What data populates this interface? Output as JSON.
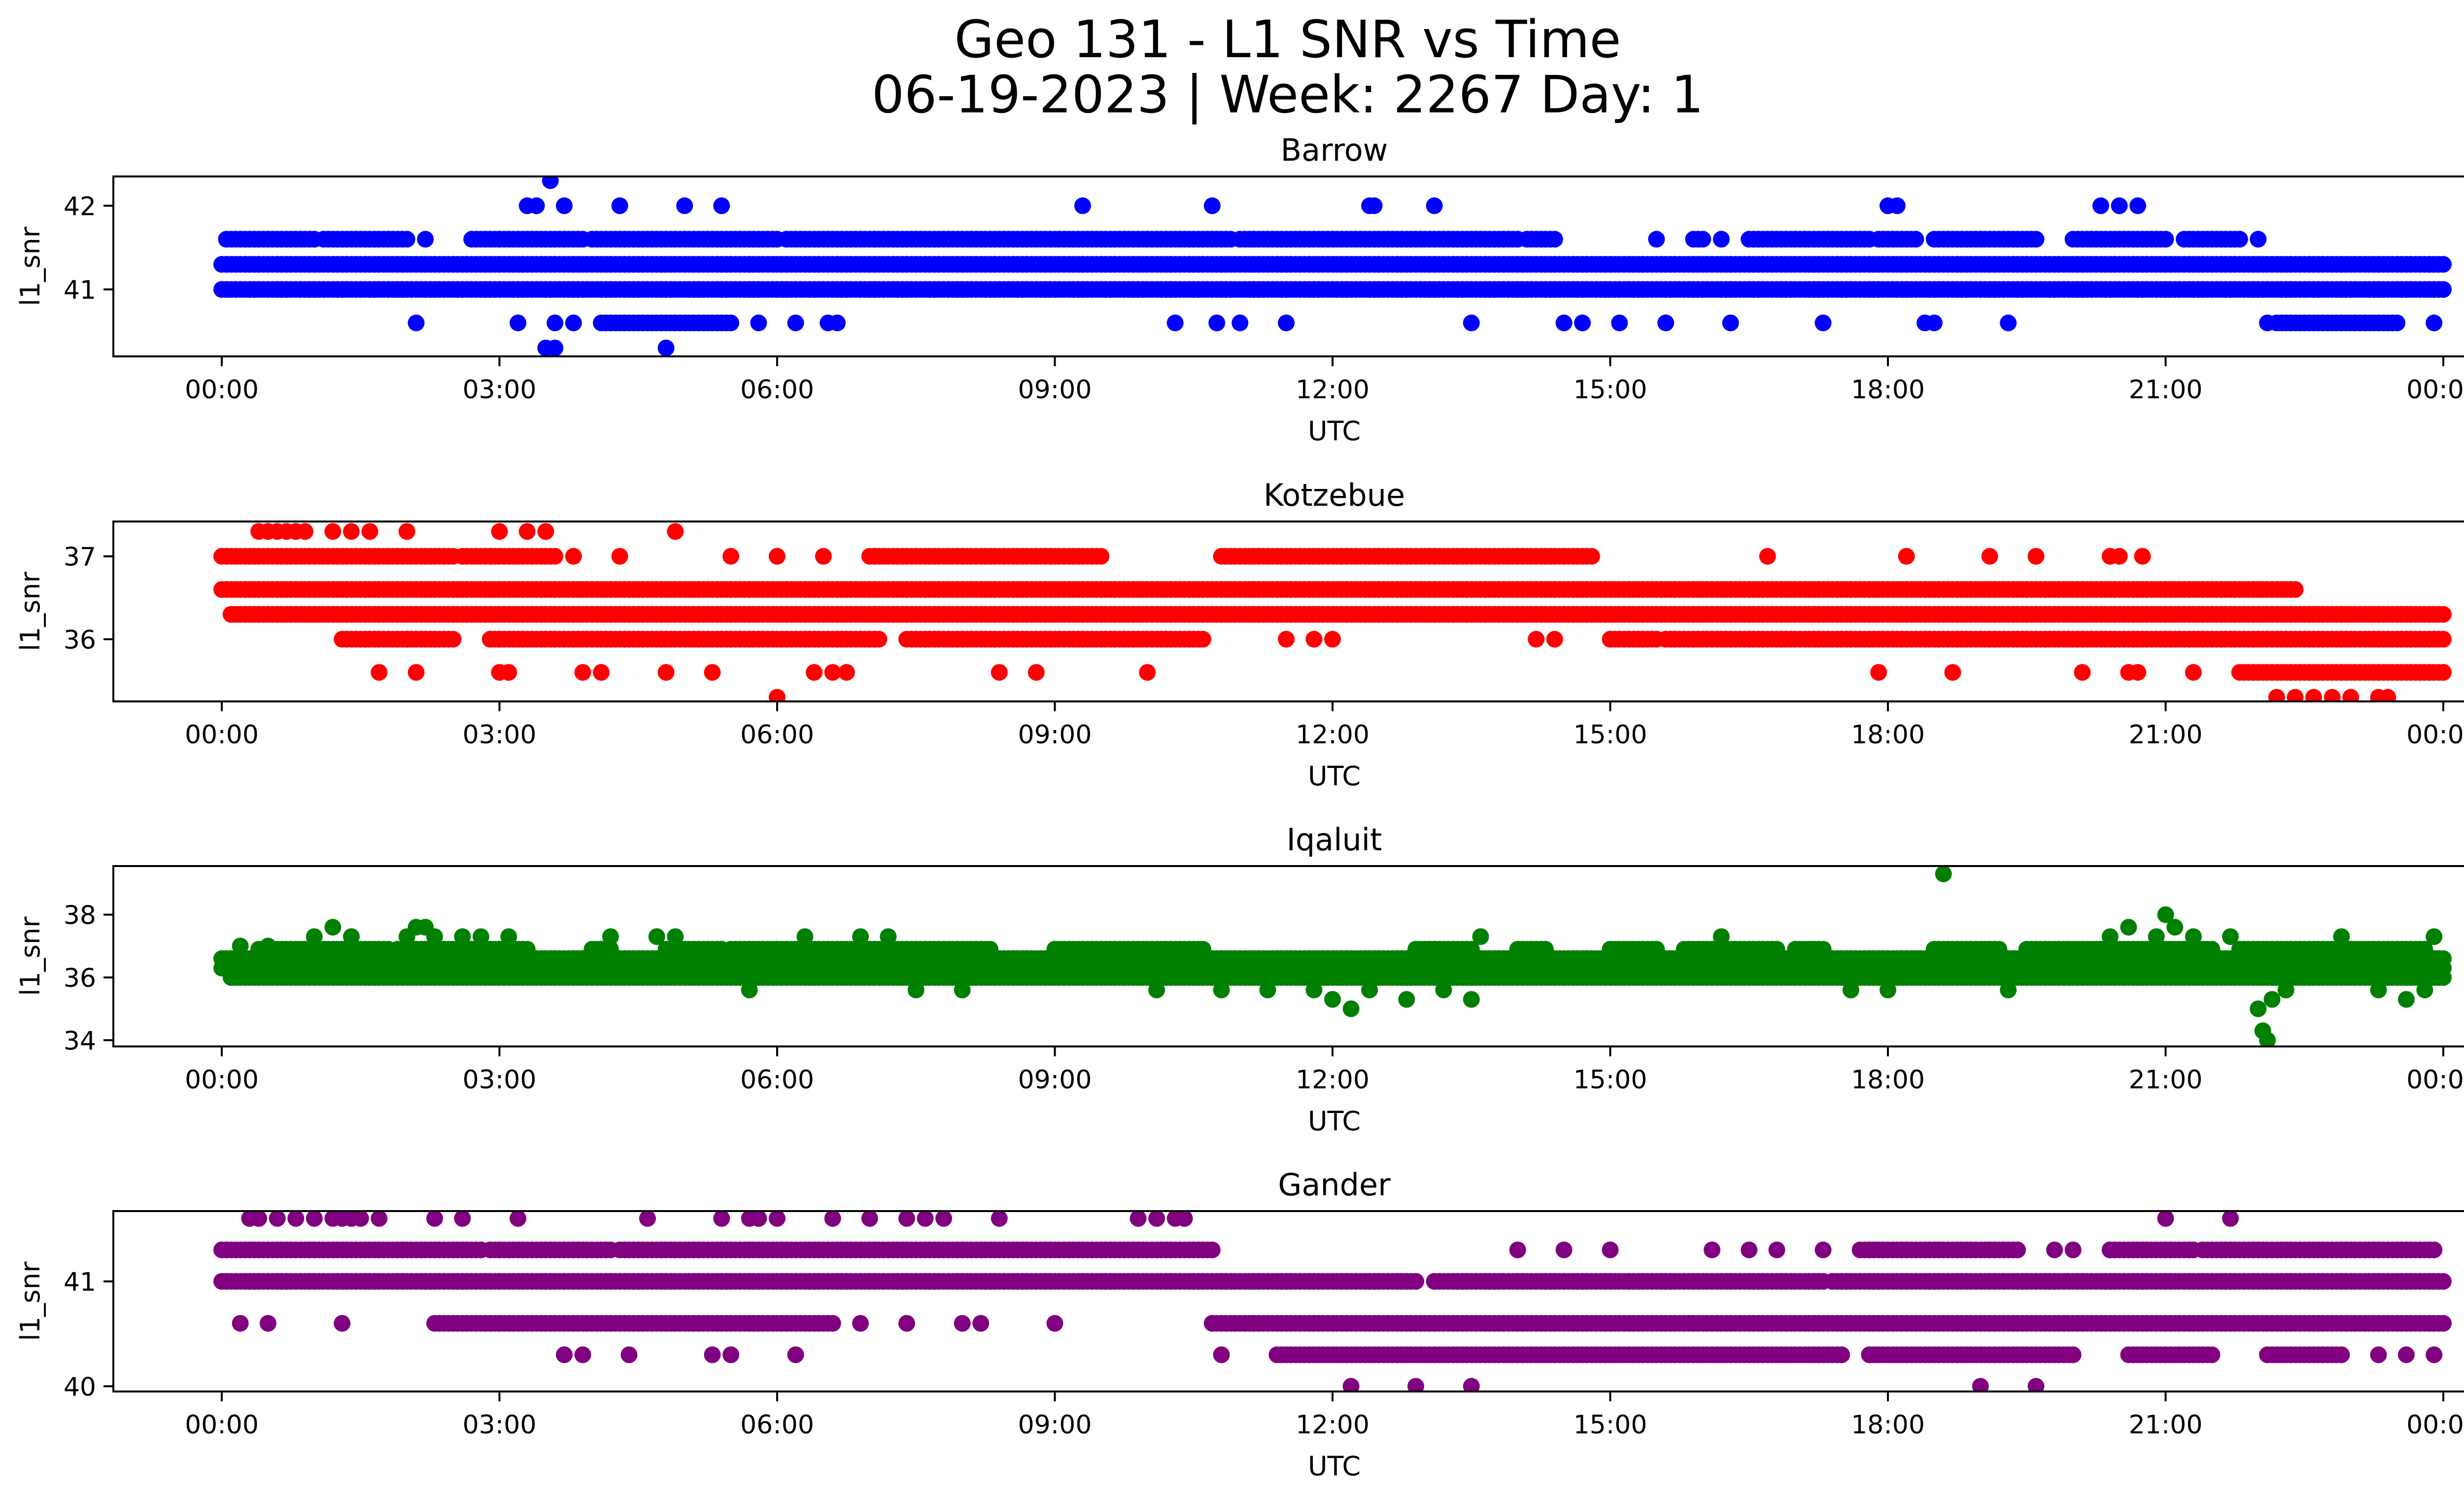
{
  "figure": {
    "title_line1": "Geo 131 - L1 SNR vs Time",
    "title_line2": "06-19-2023 | Week: 2267 Day: 1"
  },
  "chart_data": [
    {
      "type": "scatter",
      "title": "Barrow",
      "xlabel": "UTC",
      "ylabel": "l1_snr",
      "color": "#0000ff",
      "xlim": [
        "00:00",
        "24:00"
      ],
      "ylim": [
        40.2,
        42.35
      ],
      "yticks": [
        41,
        42
      ],
      "xticks": [
        "00:00",
        "03:00",
        "06:00",
        "09:00",
        "12:00",
        "15:00",
        "18:00",
        "21:00",
        "00:00"
      ],
      "grid": false,
      "bands": [
        {
          "y": 41.3,
          "ranges": [
            [
              0.0,
              24.0
            ]
          ]
        },
        {
          "y": 41.0,
          "ranges": [
            [
              0.0,
              24.0
            ]
          ]
        },
        {
          "y": 41.6,
          "ranges": [
            [
              0.05,
              1.0
            ],
            [
              1.1,
              2.0
            ],
            [
              2.7,
              3.9
            ],
            [
              4.0,
              6.0
            ],
            [
              6.1,
              10.9
            ],
            [
              11.0,
              14.0
            ],
            [
              14.1,
              14.4
            ],
            [
              15.9,
              16.0
            ],
            [
              16.5,
              17.8
            ],
            [
              17.9,
              18.3
            ],
            [
              18.5,
              19.6
            ],
            [
              20.0,
              21.0
            ],
            [
              21.2,
              21.8
            ]
          ]
        },
        {
          "y": 40.6,
          "ranges": [
            [
              4.1,
              5.5
            ],
            [
              22.2,
              23.5
            ]
          ]
        }
      ],
      "points": [
        [
          2.1,
          40.6
        ],
        [
          2.2,
          41.6
        ],
        [
          3.2,
          40.6
        ],
        [
          3.3,
          42.0
        ],
        [
          3.4,
          42.0
        ],
        [
          3.5,
          40.3
        ],
        [
          3.55,
          42.3
        ],
        [
          3.6,
          40.3
        ],
        [
          3.6,
          40.6
        ],
        [
          3.7,
          42.0
        ],
        [
          3.8,
          40.6
        ],
        [
          4.3,
          42.0
        ],
        [
          4.8,
          40.3
        ],
        [
          5.0,
          42.0
        ],
        [
          5.4,
          42.0
        ],
        [
          5.8,
          40.6
        ],
        [
          6.2,
          40.6
        ],
        [
          6.55,
          40.6
        ],
        [
          6.65,
          40.6
        ],
        [
          9.3,
          42.0
        ],
        [
          10.3,
          40.6
        ],
        [
          10.7,
          42.0
        ],
        [
          10.75,
          40.6
        ],
        [
          11.0,
          40.6
        ],
        [
          11.5,
          40.6
        ],
        [
          12.4,
          42.0
        ],
        [
          12.45,
          42.0
        ],
        [
          13.1,
          42.0
        ],
        [
          13.5,
          40.6
        ],
        [
          14.5,
          40.6
        ],
        [
          14.7,
          40.6
        ],
        [
          15.1,
          40.6
        ],
        [
          15.5,
          41.6
        ],
        [
          15.6,
          40.6
        ],
        [
          16.2,
          41.6
        ],
        [
          16.3,
          40.6
        ],
        [
          17.3,
          40.6
        ],
        [
          18.0,
          42.0
        ],
        [
          18.1,
          42.0
        ],
        [
          18.4,
          40.6
        ],
        [
          18.5,
          40.6
        ],
        [
          19.3,
          40.6
        ],
        [
          20.3,
          42.0
        ],
        [
          20.5,
          42.0
        ],
        [
          20.7,
          42.0
        ],
        [
          22.0,
          41.6
        ],
        [
          22.1,
          40.6
        ],
        [
          23.9,
          40.6
        ]
      ]
    },
    {
      "type": "scatter",
      "title": "Kotzebue",
      "xlabel": "UTC",
      "ylabel": "l1_snr",
      "color": "#ff0000",
      "xlim": [
        "00:00",
        "24:00"
      ],
      "ylim": [
        35.25,
        37.42
      ],
      "yticks": [
        36,
        37
      ],
      "xticks": [
        "00:00",
        "03:00",
        "06:00",
        "09:00",
        "12:00",
        "15:00",
        "18:00",
        "21:00",
        "00:00"
      ],
      "grid": false,
      "bands": [
        {
          "y": 36.6,
          "ranges": [
            [
              0.0,
              22.4
            ]
          ]
        },
        {
          "y": 36.3,
          "ranges": [
            [
              0.1,
              24.0
            ]
          ]
        },
        {
          "y": 37.0,
          "ranges": [
            [
              0.0,
              2.5
            ],
            [
              2.6,
              3.6
            ],
            [
              7.0,
              9.5
            ],
            [
              10.8,
              14.8
            ]
          ]
        },
        {
          "y": 36.0,
          "ranges": [
            [
              1.3,
              2.0
            ],
            [
              2.0,
              2.5
            ],
            [
              2.9,
              7.1
            ],
            [
              7.4,
              10.6
            ],
            [
              15.0,
              15.5
            ],
            [
              15.6,
              24.0
            ]
          ]
        },
        {
          "y": 35.6,
          "ranges": [
            [
              21.8,
              24.0
            ]
          ]
        }
      ],
      "points": [
        [
          0.4,
          37.3
        ],
        [
          0.5,
          37.3
        ],
        [
          0.6,
          37.3
        ],
        [
          0.7,
          37.3
        ],
        [
          0.8,
          37.3
        ],
        [
          0.9,
          37.3
        ],
        [
          1.2,
          37.3
        ],
        [
          1.4,
          37.3
        ],
        [
          1.6,
          37.3
        ],
        [
          2.0,
          37.3
        ],
        [
          3.0,
          37.3
        ],
        [
          3.3,
          37.3
        ],
        [
          3.5,
          37.3
        ],
        [
          4.9,
          37.3
        ],
        [
          1.7,
          35.6
        ],
        [
          2.1,
          35.6
        ],
        [
          3.0,
          35.6
        ],
        [
          3.1,
          35.6
        ],
        [
          3.9,
          35.6
        ],
        [
          4.1,
          35.6
        ],
        [
          4.8,
          35.6
        ],
        [
          5.3,
          35.6
        ],
        [
          6.0,
          35.3
        ],
        [
          6.4,
          35.6
        ],
        [
          6.6,
          35.6
        ],
        [
          6.75,
          35.6
        ],
        [
          8.4,
          35.6
        ],
        [
          8.8,
          35.6
        ],
        [
          10.0,
          35.6
        ],
        [
          3.8,
          37.0
        ],
        [
          4.3,
          37.0
        ],
        [
          5.5,
          37.0
        ],
        [
          6.0,
          37.0
        ],
        [
          6.5,
          37.0
        ],
        [
          11.5,
          36.0
        ],
        [
          11.8,
          36.0
        ],
        [
          12.0,
          36.0
        ],
        [
          14.2,
          36.0
        ],
        [
          14.4,
          36.0
        ],
        [
          16.7,
          37.0
        ],
        [
          18.2,
          37.0
        ],
        [
          19.1,
          37.0
        ],
        [
          19.6,
          37.0
        ],
        [
          20.4,
          37.0
        ],
        [
          20.5,
          37.0
        ],
        [
          20.75,
          37.0
        ],
        [
          17.9,
          35.6
        ],
        [
          18.7,
          35.6
        ],
        [
          20.1,
          35.6
        ],
        [
          20.6,
          35.6
        ],
        [
          20.7,
          35.6
        ],
        [
          21.3,
          35.6
        ],
        [
          22.2,
          35.3
        ],
        [
          22.4,
          35.3
        ],
        [
          22.6,
          35.3
        ],
        [
          22.8,
          35.3
        ],
        [
          23.0,
          35.3
        ],
        [
          23.3,
          35.3
        ],
        [
          23.4,
          35.3
        ],
        [
          24.0,
          35.6
        ]
      ]
    },
    {
      "type": "scatter",
      "title": "Iqaluit",
      "xlabel": "UTC",
      "ylabel": "l1_snr",
      "color": "#008000",
      "xlim": [
        "00:00",
        "24:00"
      ],
      "ylim": [
        33.8,
        39.55
      ],
      "yticks": [
        34,
        36,
        38
      ],
      "xticks": [
        "00:00",
        "03:00",
        "06:00",
        "09:00",
        "12:00",
        "15:00",
        "18:00",
        "21:00",
        "00:00"
      ],
      "grid": false,
      "bands": [
        {
          "y": 36.3,
          "ranges": [
            [
              0.0,
              24.0
            ]
          ]
        },
        {
          "y": 36.0,
          "ranges": [
            [
              0.1,
              24.0
            ]
          ]
        },
        {
          "y": 36.6,
          "ranges": [
            [
              0.0,
              24.0
            ]
          ]
        },
        {
          "y": 36.9,
          "ranges": [
            [
              0.4,
              1.8
            ],
            [
              1.9,
              3.3
            ],
            [
              4.0,
              4.2
            ],
            [
              4.8,
              5.4
            ],
            [
              5.5,
              6.0
            ],
            [
              6.0,
              8.3
            ],
            [
              9.0,
              10.6
            ],
            [
              12.9,
              13.5
            ],
            [
              14.0,
              14.3
            ],
            [
              15.0,
              15.5
            ],
            [
              15.8,
              16.8
            ],
            [
              17.0,
              17.3
            ],
            [
              18.5,
              19.2
            ],
            [
              19.5,
              21.5
            ],
            [
              21.8,
              23.8
            ]
          ]
        }
      ],
      "points": [
        [
          0.2,
          37.0
        ],
        [
          0.5,
          37.0
        ],
        [
          1.0,
          37.3
        ],
        [
          1.2,
          37.6
        ],
        [
          1.4,
          37.3
        ],
        [
          2.0,
          37.3
        ],
        [
          2.1,
          37.6
        ],
        [
          2.2,
          37.6
        ],
        [
          2.3,
          37.3
        ],
        [
          2.6,
          37.3
        ],
        [
          2.8,
          37.3
        ],
        [
          3.1,
          37.3
        ],
        [
          4.2,
          37.3
        ],
        [
          4.7,
          37.3
        ],
        [
          4.9,
          37.3
        ],
        [
          5.7,
          35.6
        ],
        [
          6.3,
          37.3
        ],
        [
          6.9,
          37.3
        ],
        [
          7.2,
          37.3
        ],
        [
          7.5,
          35.6
        ],
        [
          8.0,
          35.6
        ],
        [
          10.1,
          35.6
        ],
        [
          10.8,
          35.6
        ],
        [
          11.3,
          35.6
        ],
        [
          11.8,
          35.6
        ],
        [
          12.0,
          35.3
        ],
        [
          12.2,
          35.0
        ],
        [
          12.4,
          35.6
        ],
        [
          12.8,
          35.3
        ],
        [
          13.2,
          35.6
        ],
        [
          13.5,
          35.3
        ],
        [
          13.6,
          37.3
        ],
        [
          16.2,
          37.3
        ],
        [
          17.6,
          35.6
        ],
        [
          18.0,
          35.6
        ],
        [
          18.6,
          39.3
        ],
        [
          19.3,
          35.6
        ],
        [
          20.4,
          37.3
        ],
        [
          20.6,
          37.6
        ],
        [
          20.9,
          37.3
        ],
        [
          21.0,
          38.0
        ],
        [
          21.1,
          37.6
        ],
        [
          21.3,
          37.3
        ],
        [
          21.7,
          37.3
        ],
        [
          22.0,
          35.0
        ],
        [
          22.05,
          34.3
        ],
        [
          22.1,
          34.0
        ],
        [
          22.15,
          35.3
        ],
        [
          22.3,
          35.6
        ],
        [
          22.9,
          37.3
        ],
        [
          23.3,
          35.6
        ],
        [
          23.6,
          35.3
        ],
        [
          23.8,
          35.6
        ],
        [
          23.9,
          37.3
        ]
      ]
    },
    {
      "type": "scatter",
      "title": "Gander",
      "xlabel": "UTC",
      "ylabel": "l1_snr",
      "color": "#800080",
      "xlim": [
        "00:00",
        "24:00"
      ],
      "ylim": [
        39.95,
        41.67
      ],
      "yticks": [
        40,
        41
      ],
      "xticks": [
        "00:00",
        "03:00",
        "06:00",
        "09:00",
        "12:00",
        "15:00",
        "18:00",
        "21:00",
        "00:00"
      ],
      "grid": false,
      "bands": [
        {
          "y": 41.0,
          "ranges": [
            [
              0.0,
              12.9
            ],
            [
              13.1,
              17.3
            ],
            [
              17.4,
              24.0
            ]
          ]
        },
        {
          "y": 41.3,
          "ranges": [
            [
              0.0,
              2.8
            ],
            [
              2.9,
              4.2
            ],
            [
              4.3,
              10.7
            ],
            [
              17.7,
              19.4
            ],
            [
              20.4,
              21.3
            ],
            [
              21.4,
              23.9
            ]
          ]
        },
        {
          "y": 40.6,
          "ranges": [
            [
              2.3,
              6.6
            ],
            [
              10.7,
              24.0
            ]
          ]
        },
        {
          "y": 40.3,
          "ranges": [
            [
              11.4,
              17.5
            ],
            [
              17.8,
              20.0
            ],
            [
              20.6,
              21.5
            ],
            [
              22.1,
              22.9
            ]
          ]
        }
      ],
      "points": [
        [
          0.3,
          41.6
        ],
        [
          0.4,
          41.6
        ],
        [
          0.6,
          41.6
        ],
        [
          0.8,
          41.6
        ],
        [
          1.0,
          41.6
        ],
        [
          1.2,
          41.6
        ],
        [
          1.3,
          41.6
        ],
        [
          1.4,
          41.6
        ],
        [
          1.5,
          41.6
        ],
        [
          1.7,
          41.6
        ],
        [
          2.3,
          41.6
        ],
        [
          2.6,
          41.6
        ],
        [
          3.2,
          41.6
        ],
        [
          4.6,
          41.6
        ],
        [
          5.4,
          41.6
        ],
        [
          5.7,
          41.6
        ],
        [
          5.8,
          41.6
        ],
        [
          6.0,
          41.6
        ],
        [
          6.6,
          41.6
        ],
        [
          7.0,
          41.6
        ],
        [
          7.4,
          41.6
        ],
        [
          7.6,
          41.6
        ],
        [
          7.8,
          41.6
        ],
        [
          8.4,
          41.6
        ],
        [
          9.9,
          41.6
        ],
        [
          10.1,
          41.6
        ],
        [
          10.3,
          41.6
        ],
        [
          10.4,
          41.6
        ],
        [
          0.2,
          40.6
        ],
        [
          0.5,
          40.6
        ],
        [
          1.3,
          40.6
        ],
        [
          3.7,
          40.3
        ],
        [
          3.9,
          40.3
        ],
        [
          4.4,
          40.3
        ],
        [
          5.3,
          40.3
        ],
        [
          5.5,
          40.3
        ],
        [
          6.2,
          40.3
        ],
        [
          6.9,
          40.6
        ],
        [
          7.4,
          40.6
        ],
        [
          8.0,
          40.6
        ],
        [
          8.2,
          40.6
        ],
        [
          9.0,
          40.6
        ],
        [
          10.8,
          40.3
        ],
        [
          12.2,
          40.0
        ],
        [
          12.9,
          40.0
        ],
        [
          13.5,
          40.0
        ],
        [
          14.0,
          41.3
        ],
        [
          14.5,
          41.3
        ],
        [
          15.0,
          41.3
        ],
        [
          16.1,
          41.3
        ],
        [
          16.5,
          41.3
        ],
        [
          16.8,
          41.3
        ],
        [
          17.3,
          41.3
        ],
        [
          19.0,
          40.0
        ],
        [
          19.6,
          40.0
        ],
        [
          19.8,
          41.3
        ],
        [
          20.0,
          41.3
        ],
        [
          20.4,
          41.3
        ],
        [
          21.0,
          41.6
        ],
        [
          21.7,
          41.6
        ],
        [
          22.7,
          40.3
        ],
        [
          23.3,
          40.3
        ],
        [
          23.6,
          40.3
        ],
        [
          23.9,
          40.3
        ]
      ]
    }
  ]
}
